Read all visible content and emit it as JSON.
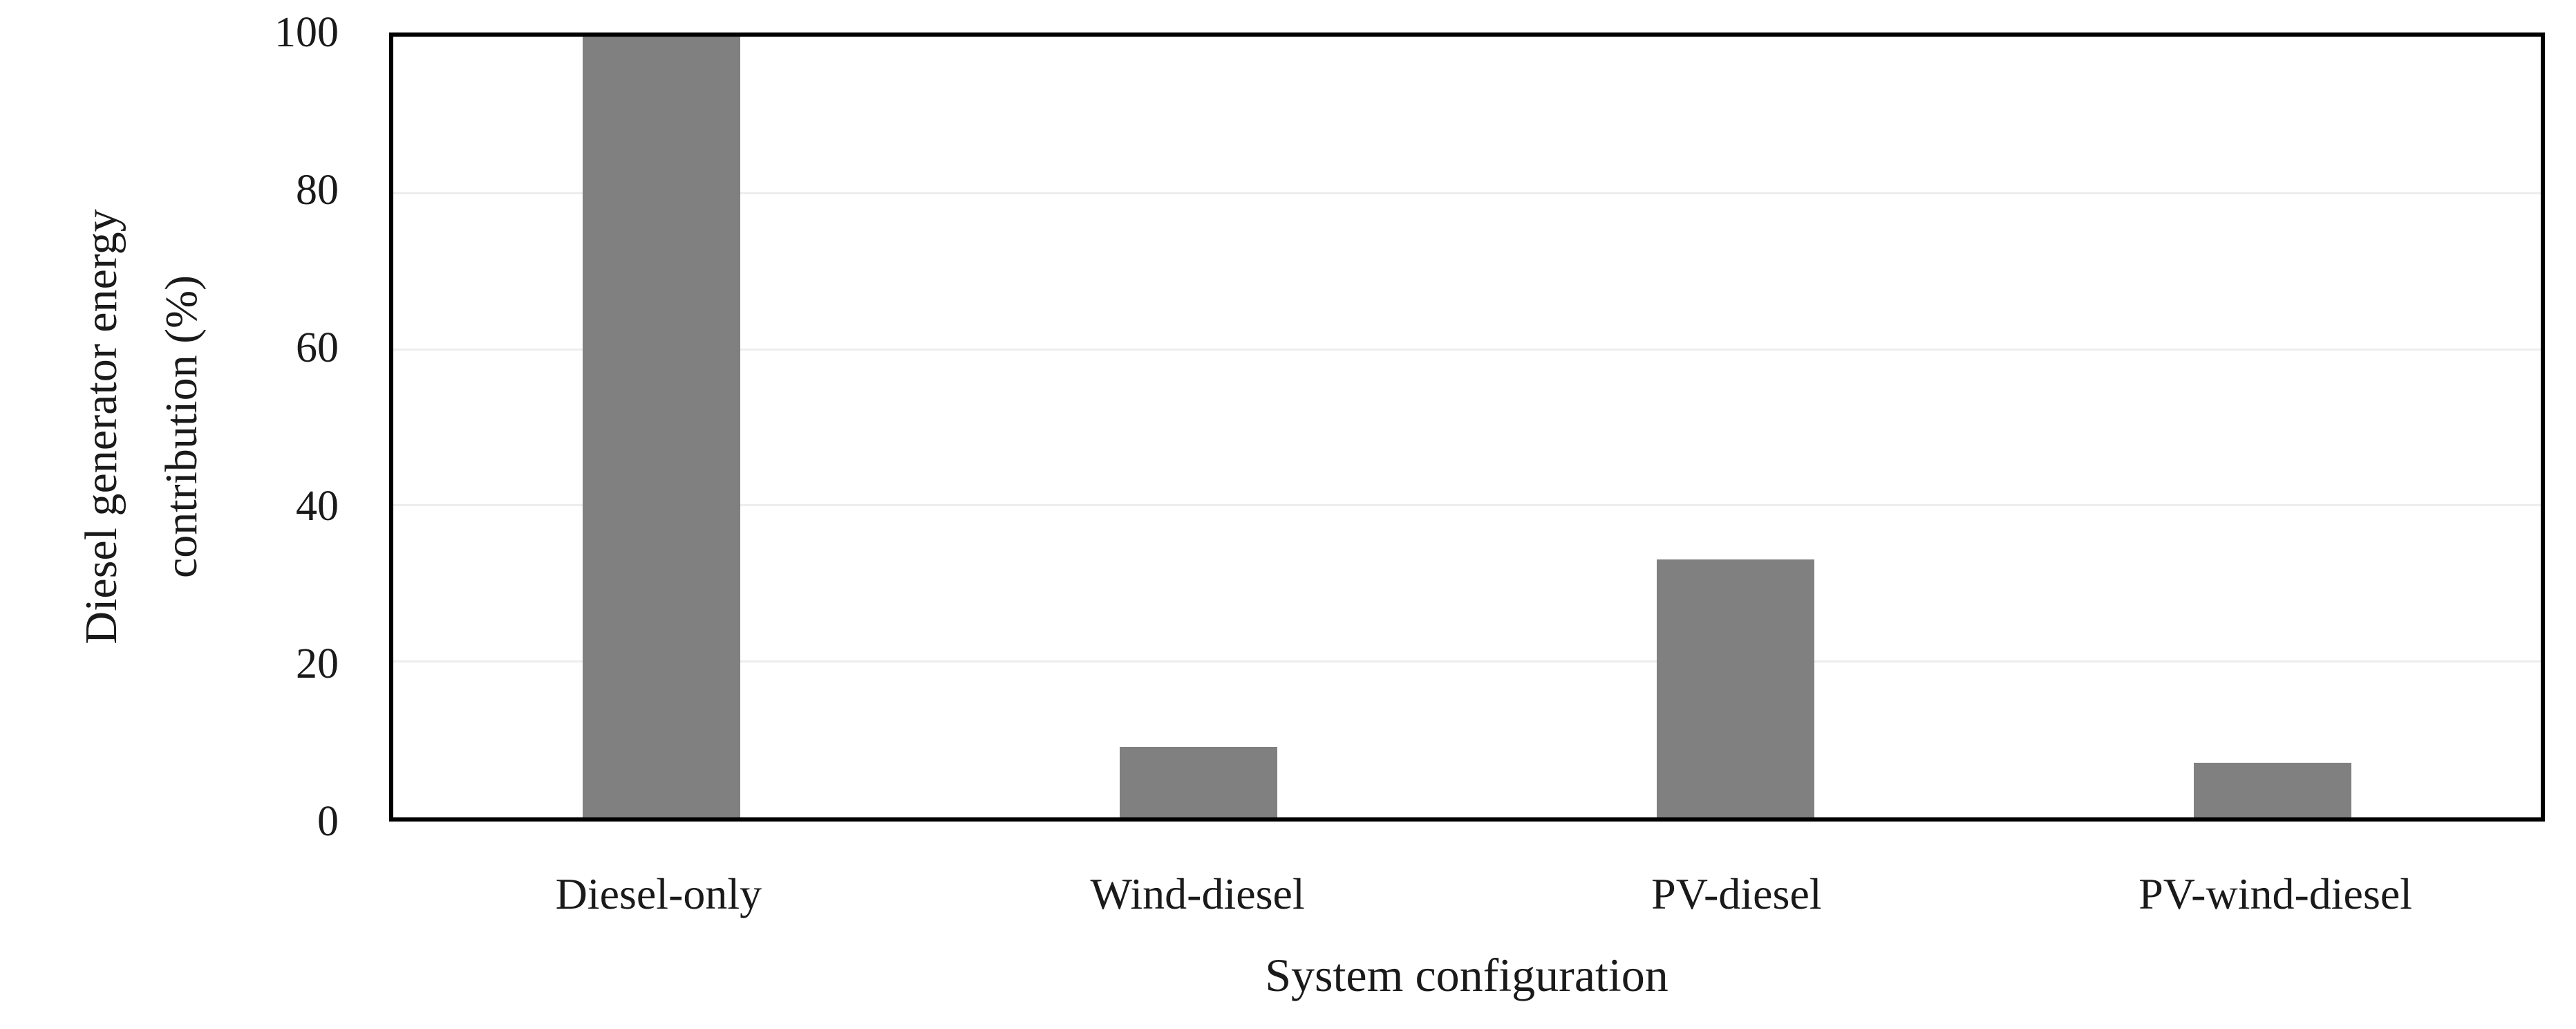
{
  "figure": {
    "background_color": "#ffffff",
    "text_color": "#1a1a1a"
  },
  "chart_data": {
    "type": "bar",
    "title": "",
    "categories": [
      "Diesel-only",
      "Wind-diesel",
      "PV-diesel",
      "PV-wind-diesel"
    ],
    "values": [
      100,
      9,
      33,
      7
    ],
    "series_name": "Diesel generator energy contribution",
    "xlabel": "System configuration",
    "ylabel": "Diesel generator energy contribution (%)",
    "ylabel_line1": "Diesel generator energy",
    "ylabel_line2": "contribution (%)",
    "ylim": [
      0,
      100
    ],
    "yticks": [
      0,
      20,
      40,
      60,
      80,
      100
    ],
    "grid": "horizontal",
    "legend_position": "none",
    "bar_color": "#808080",
    "grid_color": "#ededed",
    "axis_box_color": "#000000"
  }
}
